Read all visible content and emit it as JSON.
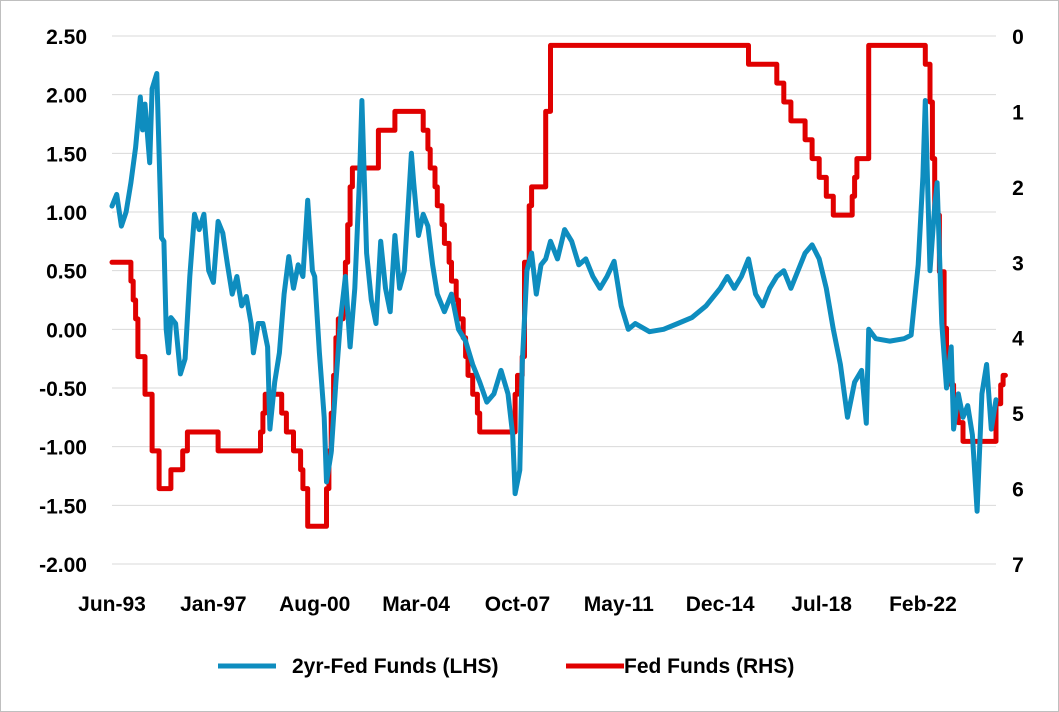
{
  "chart_data": {
    "type": "line",
    "title": "",
    "xlabel": "",
    "x_tick_labels": [
      "Jun-93",
      "Jan-97",
      "Aug-00",
      "Mar-04",
      "Oct-07",
      "May-11",
      "Dec-14",
      "Jul-18",
      "Feb-22"
    ],
    "x_tick_dates": [
      "1993-06",
      "1997-01",
      "2000-08",
      "2004-03",
      "2007-10",
      "2011-05",
      "2014-12",
      "2018-07",
      "2022-02"
    ],
    "x_range": [
      "1993-06",
      "2024-09"
    ],
    "y_left": {
      "label": "",
      "ticks": [
        "2.50",
        "2.00",
        "1.50",
        "1.00",
        "0.50",
        "0.00",
        "-0.50",
        "-1.00",
        "-1.50",
        "-2.00"
      ],
      "range": [
        -2.0,
        2.5
      ]
    },
    "y_right": {
      "label": "",
      "inverted": true,
      "ticks": [
        "0",
        "1",
        "2",
        "3",
        "4",
        "5",
        "6",
        "7"
      ],
      "range": [
        0,
        7
      ]
    },
    "grid": "horizontal",
    "legend_position": "bottom",
    "series": [
      {
        "name": "2yr-Fed Funds (LHS)",
        "axis": "left",
        "color": "#0e8dbf",
        "points": [
          [
            "1993-06",
            1.05
          ],
          [
            "1993-08",
            1.15
          ],
          [
            "1993-10",
            0.88
          ],
          [
            "1993-12",
            1.0
          ],
          [
            "1994-02",
            1.25
          ],
          [
            "1994-04",
            1.55
          ],
          [
            "1994-06",
            1.98
          ],
          [
            "1994-07",
            1.7
          ],
          [
            "1994-08",
            1.92
          ],
          [
            "1994-10",
            1.42
          ],
          [
            "1994-11",
            2.05
          ],
          [
            "1995-01",
            2.18
          ],
          [
            "1995-03",
            0.78
          ],
          [
            "1995-04",
            0.75
          ],
          [
            "1995-05",
            0.0
          ],
          [
            "1995-06",
            -0.2
          ],
          [
            "1995-07",
            0.1
          ],
          [
            "1995-09",
            0.05
          ],
          [
            "1995-11",
            -0.38
          ],
          [
            "1996-01",
            -0.25
          ],
          [
            "1996-03",
            0.45
          ],
          [
            "1996-05",
            0.98
          ],
          [
            "1996-07",
            0.85
          ],
          [
            "1996-09",
            0.98
          ],
          [
            "1996-11",
            0.5
          ],
          [
            "1997-01",
            0.4
          ],
          [
            "1997-03",
            0.92
          ],
          [
            "1997-05",
            0.82
          ],
          [
            "1997-07",
            0.55
          ],
          [
            "1997-09",
            0.3
          ],
          [
            "1997-11",
            0.45
          ],
          [
            "1998-01",
            0.2
          ],
          [
            "1998-03",
            0.28
          ],
          [
            "1998-05",
            0.05
          ],
          [
            "1998-06",
            -0.2
          ],
          [
            "1998-08",
            0.05
          ],
          [
            "1998-10",
            0.05
          ],
          [
            "1998-12",
            -0.15
          ],
          [
            "1999-01",
            -0.85
          ],
          [
            "1999-03",
            -0.45
          ],
          [
            "1999-05",
            -0.2
          ],
          [
            "1999-07",
            0.3
          ],
          [
            "1999-09",
            0.62
          ],
          [
            "1999-11",
            0.35
          ],
          [
            "2000-01",
            0.55
          ],
          [
            "2000-03",
            0.45
          ],
          [
            "2000-05",
            1.1
          ],
          [
            "2000-07",
            0.5
          ],
          [
            "2000-08",
            0.45
          ],
          [
            "2000-10",
            -0.2
          ],
          [
            "2000-12",
            -0.75
          ],
          [
            "2001-01",
            -1.3
          ],
          [
            "2001-03",
            -1.05
          ],
          [
            "2001-05",
            -0.45
          ],
          [
            "2001-07",
            0.1
          ],
          [
            "2001-09",
            0.45
          ],
          [
            "2001-11",
            -0.15
          ],
          [
            "2002-01",
            0.35
          ],
          [
            "2002-03",
            1.28
          ],
          [
            "2002-04",
            1.95
          ],
          [
            "2002-06",
            0.65
          ],
          [
            "2002-08",
            0.25
          ],
          [
            "2002-10",
            0.05
          ],
          [
            "2002-12",
            0.75
          ],
          [
            "2003-02",
            0.35
          ],
          [
            "2003-04",
            0.15
          ],
          [
            "2003-06",
            0.8
          ],
          [
            "2003-08",
            0.35
          ],
          [
            "2003-10",
            0.5
          ],
          [
            "2004-01",
            1.5
          ],
          [
            "2004-02",
            1.25
          ],
          [
            "2004-04",
            0.8
          ],
          [
            "2004-06",
            0.98
          ],
          [
            "2004-08",
            0.88
          ],
          [
            "2004-10",
            0.55
          ],
          [
            "2004-12",
            0.3
          ],
          [
            "2005-03",
            0.15
          ],
          [
            "2005-06",
            0.3
          ],
          [
            "2005-09",
            0.0
          ],
          [
            "2005-12",
            -0.1
          ],
          [
            "2006-03",
            -0.3
          ],
          [
            "2006-06",
            -0.45
          ],
          [
            "2006-09",
            -0.62
          ],
          [
            "2006-12",
            -0.55
          ],
          [
            "2007-03",
            -0.35
          ],
          [
            "2007-06",
            -0.55
          ],
          [
            "2007-08",
            -0.9
          ],
          [
            "2007-09",
            -1.4
          ],
          [
            "2007-11",
            -1.2
          ],
          [
            "2007-12",
            -0.3
          ],
          [
            "2008-02",
            0.5
          ],
          [
            "2008-04",
            0.65
          ],
          [
            "2008-06",
            0.3
          ],
          [
            "2008-08",
            0.55
          ],
          [
            "2008-10",
            0.6
          ],
          [
            "2008-12",
            0.75
          ],
          [
            "2009-03",
            0.6
          ],
          [
            "2009-06",
            0.85
          ],
          [
            "2009-09",
            0.75
          ],
          [
            "2009-12",
            0.55
          ],
          [
            "2010-03",
            0.6
          ],
          [
            "2010-06",
            0.45
          ],
          [
            "2010-09",
            0.35
          ],
          [
            "2010-12",
            0.45
          ],
          [
            "2011-03",
            0.58
          ],
          [
            "2011-06",
            0.2
          ],
          [
            "2011-09",
            0.0
          ],
          [
            "2011-12",
            0.05
          ],
          [
            "2012-06",
            -0.02
          ],
          [
            "2012-12",
            0.0
          ],
          [
            "2013-06",
            0.05
          ],
          [
            "2013-12",
            0.1
          ],
          [
            "2014-06",
            0.2
          ],
          [
            "2014-12",
            0.35
          ],
          [
            "2015-03",
            0.45
          ],
          [
            "2015-06",
            0.35
          ],
          [
            "2015-09",
            0.45
          ],
          [
            "2015-12",
            0.6
          ],
          [
            "2016-03",
            0.3
          ],
          [
            "2016-06",
            0.2
          ],
          [
            "2016-09",
            0.35
          ],
          [
            "2016-12",
            0.45
          ],
          [
            "2017-03",
            0.5
          ],
          [
            "2017-06",
            0.35
          ],
          [
            "2017-09",
            0.5
          ],
          [
            "2017-12",
            0.65
          ],
          [
            "2018-03",
            0.72
          ],
          [
            "2018-06",
            0.6
          ],
          [
            "2018-09",
            0.35
          ],
          [
            "2018-12",
            0.0
          ],
          [
            "2019-03",
            -0.3
          ],
          [
            "2019-06",
            -0.75
          ],
          [
            "2019-09",
            -0.45
          ],
          [
            "2019-12",
            -0.35
          ],
          [
            "2020-02",
            -0.8
          ],
          [
            "2020-03",
            0.0
          ],
          [
            "2020-06",
            -0.08
          ],
          [
            "2020-12",
            -0.1
          ],
          [
            "2021-06",
            -0.08
          ],
          [
            "2021-09",
            -0.05
          ],
          [
            "2021-12",
            0.55
          ],
          [
            "2022-02",
            1.3
          ],
          [
            "2022-03",
            1.95
          ],
          [
            "2022-05",
            0.5
          ],
          [
            "2022-07",
            1.05
          ],
          [
            "2022-08",
            1.25
          ],
          [
            "2022-10",
            0.05
          ],
          [
            "2022-12",
            -0.5
          ],
          [
            "2023-02",
            -0.15
          ],
          [
            "2023-03",
            -0.85
          ],
          [
            "2023-05",
            -0.55
          ],
          [
            "2023-07",
            -0.75
          ],
          [
            "2023-09",
            -0.65
          ],
          [
            "2023-11",
            -0.9
          ],
          [
            "2024-01",
            -1.55
          ],
          [
            "2024-03",
            -0.55
          ],
          [
            "2024-05",
            -0.3
          ],
          [
            "2024-07",
            -0.85
          ],
          [
            "2024-09",
            -0.6
          ]
        ]
      },
      {
        "name": "Fed Funds (RHS)",
        "axis": "right",
        "color": "#e00000",
        "points": [
          [
            "1993-06",
            3.0
          ],
          [
            "1994-01",
            3.0
          ],
          [
            "1994-02",
            3.25
          ],
          [
            "1994-03",
            3.5
          ],
          [
            "1994-04",
            3.75
          ],
          [
            "1994-05",
            4.25
          ],
          [
            "1994-08",
            4.75
          ],
          [
            "1994-11",
            5.5
          ],
          [
            "1995-02",
            6.0
          ],
          [
            "1995-07",
            5.75
          ],
          [
            "1995-12",
            5.5
          ],
          [
            "1996-02",
            5.25
          ],
          [
            "1997-03",
            5.5
          ],
          [
            "1998-09",
            5.25
          ],
          [
            "1998-10",
            5.0
          ],
          [
            "1998-11",
            4.75
          ],
          [
            "1999-06",
            5.0
          ],
          [
            "1999-08",
            5.25
          ],
          [
            "1999-11",
            5.5
          ],
          [
            "2000-02",
            5.75
          ],
          [
            "2000-03",
            6.0
          ],
          [
            "2000-05",
            6.5
          ],
          [
            "2001-01",
            6.0
          ],
          [
            "2001-02",
            5.5
          ],
          [
            "2001-03",
            5.0
          ],
          [
            "2001-04",
            4.5
          ],
          [
            "2001-05",
            4.0
          ],
          [
            "2001-06",
            3.75
          ],
          [
            "2001-08",
            3.5
          ],
          [
            "2001-09",
            3.0
          ],
          [
            "2001-10",
            2.5
          ],
          [
            "2001-11",
            2.0
          ],
          [
            "2001-12",
            1.75
          ],
          [
            "2002-11",
            1.25
          ],
          [
            "2003-06",
            1.0
          ],
          [
            "2004-06",
            1.25
          ],
          [
            "2004-08",
            1.5
          ],
          [
            "2004-09",
            1.75
          ],
          [
            "2004-11",
            2.0
          ],
          [
            "2004-12",
            2.25
          ],
          [
            "2005-02",
            2.5
          ],
          [
            "2005-03",
            2.75
          ],
          [
            "2005-05",
            3.0
          ],
          [
            "2005-06",
            3.25
          ],
          [
            "2005-08",
            3.5
          ],
          [
            "2005-09",
            3.75
          ],
          [
            "2005-11",
            4.0
          ],
          [
            "2005-12",
            4.25
          ],
          [
            "2006-01",
            4.5
          ],
          [
            "2006-03",
            4.75
          ],
          [
            "2006-05",
            5.0
          ],
          [
            "2006-06",
            5.25
          ],
          [
            "2007-09",
            4.75
          ],
          [
            "2007-10",
            4.5
          ],
          [
            "2007-12",
            4.25
          ],
          [
            "2008-01",
            3.0
          ],
          [
            "2008-03",
            2.25
          ],
          [
            "2008-04",
            2.0
          ],
          [
            "2008-10",
            1.0
          ],
          [
            "2008-12",
            0.125
          ],
          [
            "2015-12",
            0.375
          ],
          [
            "2016-12",
            0.625
          ],
          [
            "2017-03",
            0.875
          ],
          [
            "2017-06",
            1.125
          ],
          [
            "2017-12",
            1.375
          ],
          [
            "2018-03",
            1.625
          ],
          [
            "2018-06",
            1.875
          ],
          [
            "2018-09",
            2.125
          ],
          [
            "2018-12",
            2.375
          ],
          [
            "2019-08",
            2.125
          ],
          [
            "2019-09",
            1.875
          ],
          [
            "2019-10",
            1.625
          ],
          [
            "2020-03",
            0.125
          ],
          [
            "2022-03",
            0.375
          ],
          [
            "2022-05",
            0.875
          ],
          [
            "2022-06",
            1.625
          ],
          [
            "2022-07",
            2.375
          ],
          [
            "2022-09",
            3.125
          ],
          [
            "2022-11",
            3.875
          ],
          [
            "2022-12",
            4.375
          ],
          [
            "2023-02",
            4.625
          ],
          [
            "2023-03",
            4.875
          ],
          [
            "2023-05",
            5.125
          ],
          [
            "2023-07",
            5.375
          ],
          [
            "2024-09",
            4.875
          ],
          [
            "2024-11",
            4.625
          ],
          [
            "2024-12",
            4.5
          ],
          [
            "2025-01",
            4.5
          ]
        ]
      }
    ]
  }
}
